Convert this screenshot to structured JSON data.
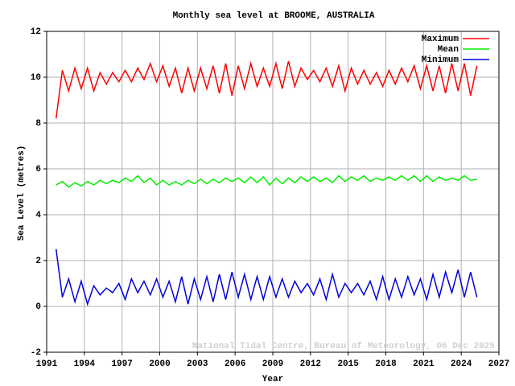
{
  "chart_data": {
    "type": "line",
    "title": "Monthly sea level at BROOME, AUSTRALIA",
    "x_label": "Year",
    "y_label": "Sea Level (metres)",
    "annotation": "National Tidal Centre, Bureau of Meteorology, 06 Dec 2025",
    "legend": "upper right",
    "grid": true,
    "xlim": [
      1991,
      2027
    ],
    "xticks": [
      1991,
      1994,
      1997,
      2000,
      2003,
      2006,
      2009,
      2012,
      2015,
      2018,
      2021,
      2024,
      2027
    ],
    "ylim": [
      -2,
      12
    ],
    "yticks": [
      -2,
      0,
      2,
      4,
      6,
      8,
      10,
      12
    ],
    "x": [
      1991.75,
      1992.25,
      1992.75,
      1993.25,
      1993.75,
      1994.25,
      1994.75,
      1995.25,
      1995.75,
      1996.25,
      1996.75,
      1997.25,
      1997.75,
      1998.25,
      1998.75,
      1999.25,
      1999.75,
      2000.25,
      2000.75,
      2001.25,
      2001.75,
      2002.25,
      2002.75,
      2003.25,
      2003.75,
      2004.25,
      2004.75,
      2005.25,
      2005.75,
      2006.25,
      2006.75,
      2007.25,
      2007.75,
      2008.25,
      2008.75,
      2009.25,
      2009.75,
      2010.25,
      2010.75,
      2011.25,
      2011.75,
      2012.25,
      2012.75,
      2013.25,
      2013.75,
      2014.25,
      2014.75,
      2015.25,
      2015.75,
      2016.25,
      2016.75,
      2017.25,
      2017.75,
      2018.25,
      2018.75,
      2019.25,
      2019.75,
      2020.25,
      2020.75,
      2021.25,
      2021.75,
      2022.25,
      2022.75,
      2023.25,
      2023.75,
      2024.25,
      2024.75,
      2025.25
    ],
    "series": [
      {
        "name": "Maximum",
        "color": "#ff0000",
        "values": [
          8.2,
          10.3,
          9.4,
          10.4,
          9.5,
          10.4,
          9.4,
          10.2,
          9.7,
          10.2,
          9.8,
          10.3,
          9.8,
          10.4,
          9.9,
          10.6,
          9.8,
          10.5,
          9.6,
          10.4,
          9.3,
          10.4,
          9.4,
          10.4,
          9.5,
          10.5,
          9.3,
          10.6,
          9.2,
          10.5,
          9.5,
          10.6,
          9.6,
          10.4,
          9.6,
          10.6,
          9.5,
          10.7,
          9.6,
          10.4,
          9.9,
          10.3,
          9.8,
          10.4,
          9.6,
          10.5,
          9.4,
          10.4,
          9.7,
          10.3,
          9.7,
          10.2,
          9.6,
          10.3,
          9.7,
          10.4,
          9.8,
          10.5,
          9.5,
          10.5,
          9.4,
          10.5,
          9.3,
          10.6,
          9.4,
          10.6,
          9.2,
          10.5
        ]
      },
      {
        "name": "Mean",
        "color": "#00ee00",
        "values": [
          5.3,
          5.45,
          5.2,
          5.4,
          5.25,
          5.45,
          5.3,
          5.5,
          5.35,
          5.5,
          5.4,
          5.6,
          5.45,
          5.7,
          5.4,
          5.6,
          5.3,
          5.5,
          5.3,
          5.45,
          5.3,
          5.5,
          5.35,
          5.55,
          5.35,
          5.55,
          5.4,
          5.6,
          5.45,
          5.6,
          5.4,
          5.65,
          5.4,
          5.65,
          5.3,
          5.6,
          5.35,
          5.6,
          5.4,
          5.65,
          5.45,
          5.65,
          5.45,
          5.6,
          5.4,
          5.7,
          5.45,
          5.65,
          5.5,
          5.7,
          5.45,
          5.6,
          5.5,
          5.65,
          5.5,
          5.7,
          5.5,
          5.7,
          5.45,
          5.7,
          5.45,
          5.65,
          5.5,
          5.6,
          5.5,
          5.7,
          5.5,
          5.55
        ]
      },
      {
        "name": "Minimum",
        "color": "#0000dd",
        "values": [
          2.5,
          0.4,
          1.2,
          0.2,
          1.1,
          0.1,
          0.9,
          0.5,
          0.8,
          0.6,
          1.0,
          0.3,
          1.2,
          0.6,
          1.1,
          0.5,
          1.2,
          0.4,
          1.1,
          0.2,
          1.3,
          0.1,
          1.2,
          0.3,
          1.3,
          0.2,
          1.4,
          0.3,
          1.5,
          0.4,
          1.4,
          0.3,
          1.3,
          0.3,
          1.3,
          0.4,
          1.2,
          0.4,
          1.1,
          0.6,
          1.0,
          0.5,
          1.2,
          0.3,
          1.4,
          0.4,
          1.0,
          0.6,
          1.0,
          0.5,
          1.1,
          0.3,
          1.3,
          0.3,
          1.2,
          0.4,
          1.3,
          0.5,
          1.2,
          0.3,
          1.4,
          0.4,
          1.5,
          0.6,
          1.6,
          0.4,
          1.5,
          0.4
        ]
      }
    ]
  }
}
